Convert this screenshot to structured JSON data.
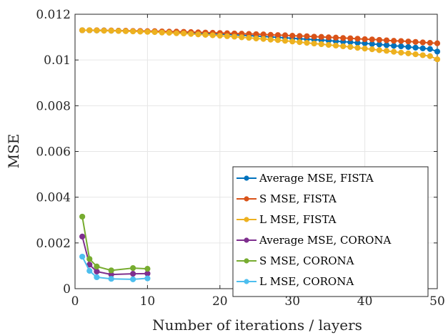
{
  "chart_data": {
    "type": "line",
    "title": "",
    "xlabel": "Number of iterations / layers",
    "ylabel": "MSE",
    "xlim": [
      0,
      50
    ],
    "ylim": [
      0,
      0.012
    ],
    "xticks": [
      0,
      10,
      20,
      30,
      40,
      50
    ],
    "xtick_labels": [
      "0",
      "10",
      "20",
      "30",
      "40",
      "50"
    ],
    "yticks": [
      0,
      0.002,
      0.004,
      0.006,
      0.008,
      0.01,
      0.012
    ],
    "ytick_labels": [
      "0",
      "0.002",
      "0.004",
      "0.006",
      "0.008",
      "0.01",
      "0.012"
    ],
    "grid": true,
    "legend_position": "lower-right",
    "series": [
      {
        "name": "Average MSE, FISTA",
        "color": "#0072BD",
        "x": [
          1,
          2,
          3,
          4,
          5,
          6,
          7,
          8,
          9,
          10,
          11,
          12,
          13,
          14,
          15,
          16,
          17,
          18,
          19,
          20,
          21,
          22,
          23,
          24,
          25,
          26,
          27,
          28,
          29,
          30,
          31,
          32,
          33,
          34,
          35,
          36,
          37,
          38,
          39,
          40,
          41,
          42,
          43,
          44,
          45,
          46,
          47,
          48,
          49,
          50
        ],
        "values": [
          0.0113,
          0.0113,
          0.01129,
          0.01129,
          0.01128,
          0.01128,
          0.01127,
          0.01126,
          0.01126,
          0.01125,
          0.01124,
          0.01123,
          0.01122,
          0.01121,
          0.0112,
          0.01119,
          0.01117,
          0.01116,
          0.01115,
          0.01113,
          0.01112,
          0.0111,
          0.01108,
          0.01107,
          0.01105,
          0.01103,
          0.01101,
          0.01099,
          0.01097,
          0.01095,
          0.01093,
          0.01091,
          0.01089,
          0.01087,
          0.01085,
          0.01082,
          0.0108,
          0.01078,
          0.01075,
          0.01073,
          0.0107,
          0.01068,
          0.01065,
          0.01062,
          0.0106,
          0.01057,
          0.01054,
          0.01051,
          0.01048,
          0.01037
        ]
      },
      {
        "name": "S MSE, FISTA",
        "color": "#D95319",
        "x": [
          1,
          2,
          3,
          4,
          5,
          6,
          7,
          8,
          9,
          10,
          11,
          12,
          13,
          14,
          15,
          16,
          17,
          18,
          19,
          20,
          21,
          22,
          23,
          24,
          25,
          26,
          27,
          28,
          29,
          30,
          31,
          32,
          33,
          34,
          35,
          36,
          37,
          38,
          39,
          40,
          41,
          42,
          43,
          44,
          45,
          46,
          47,
          48,
          49,
          50
        ],
        "values": [
          0.0113,
          0.0113,
          0.0113,
          0.01129,
          0.01129,
          0.01128,
          0.01128,
          0.01127,
          0.01127,
          0.01126,
          0.01126,
          0.01125,
          0.01124,
          0.01124,
          0.01123,
          0.01122,
          0.01121,
          0.0112,
          0.01119,
          0.01118,
          0.01117,
          0.01116,
          0.01115,
          0.01114,
          0.01113,
          0.01112,
          0.0111,
          0.01109,
          0.01108,
          0.01106,
          0.01105,
          0.01104,
          0.01102,
          0.01101,
          0.01099,
          0.01098,
          0.01096,
          0.01095,
          0.01093,
          0.01091,
          0.0109,
          0.01088,
          0.01086,
          0.01084,
          0.01083,
          0.01081,
          0.01079,
          0.01077,
          0.01075,
          0.01073
        ]
      },
      {
        "name": "L MSE, FISTA",
        "color": "#EDB120",
        "x": [
          1,
          2,
          3,
          4,
          5,
          6,
          7,
          8,
          9,
          10,
          11,
          12,
          13,
          14,
          15,
          16,
          17,
          18,
          19,
          20,
          21,
          22,
          23,
          24,
          25,
          26,
          27,
          28,
          29,
          30,
          31,
          32,
          33,
          34,
          35,
          36,
          37,
          38,
          39,
          40,
          41,
          42,
          43,
          44,
          45,
          46,
          47,
          48,
          49,
          50
        ],
        "values": [
          0.0113,
          0.0113,
          0.01129,
          0.01128,
          0.01128,
          0.01127,
          0.01126,
          0.01125,
          0.01124,
          0.01123,
          0.01122,
          0.0112,
          0.01119,
          0.01117,
          0.01116,
          0.01114,
          0.01112,
          0.0111,
          0.01108,
          0.01106,
          0.01104,
          0.01102,
          0.01099,
          0.01097,
          0.01094,
          0.01092,
          0.01089,
          0.01087,
          0.01084,
          0.01081,
          0.01078,
          0.01075,
          0.01072,
          0.01069,
          0.01066,
          0.01063,
          0.0106,
          0.01057,
          0.01053,
          0.0105,
          0.01047,
          0.01043,
          0.0104,
          0.01036,
          0.01032,
          0.01029,
          0.01025,
          0.01021,
          0.01017,
          0.01003
        ]
      },
      {
        "name": "Average MSE, CORONA",
        "color": "#7E2F8E",
        "x": [
          1,
          2,
          3,
          5,
          8,
          10
        ],
        "values": [
          0.00228,
          0.00105,
          0.00075,
          0.00062,
          0.00065,
          0.00066
        ]
      },
      {
        "name": "S MSE, CORONA",
        "color": "#77AC30",
        "x": [
          1,
          2,
          3,
          5,
          8,
          10
        ],
        "values": [
          0.00315,
          0.0013,
          0.00097,
          0.0008,
          0.0009,
          0.00087
        ]
      },
      {
        "name": "L MSE, CORONA",
        "color": "#4DBEEE",
        "x": [
          1,
          2,
          3,
          5,
          8,
          10
        ],
        "values": [
          0.0014,
          0.00078,
          0.0005,
          0.00043,
          0.00041,
          0.00045
        ]
      }
    ]
  }
}
